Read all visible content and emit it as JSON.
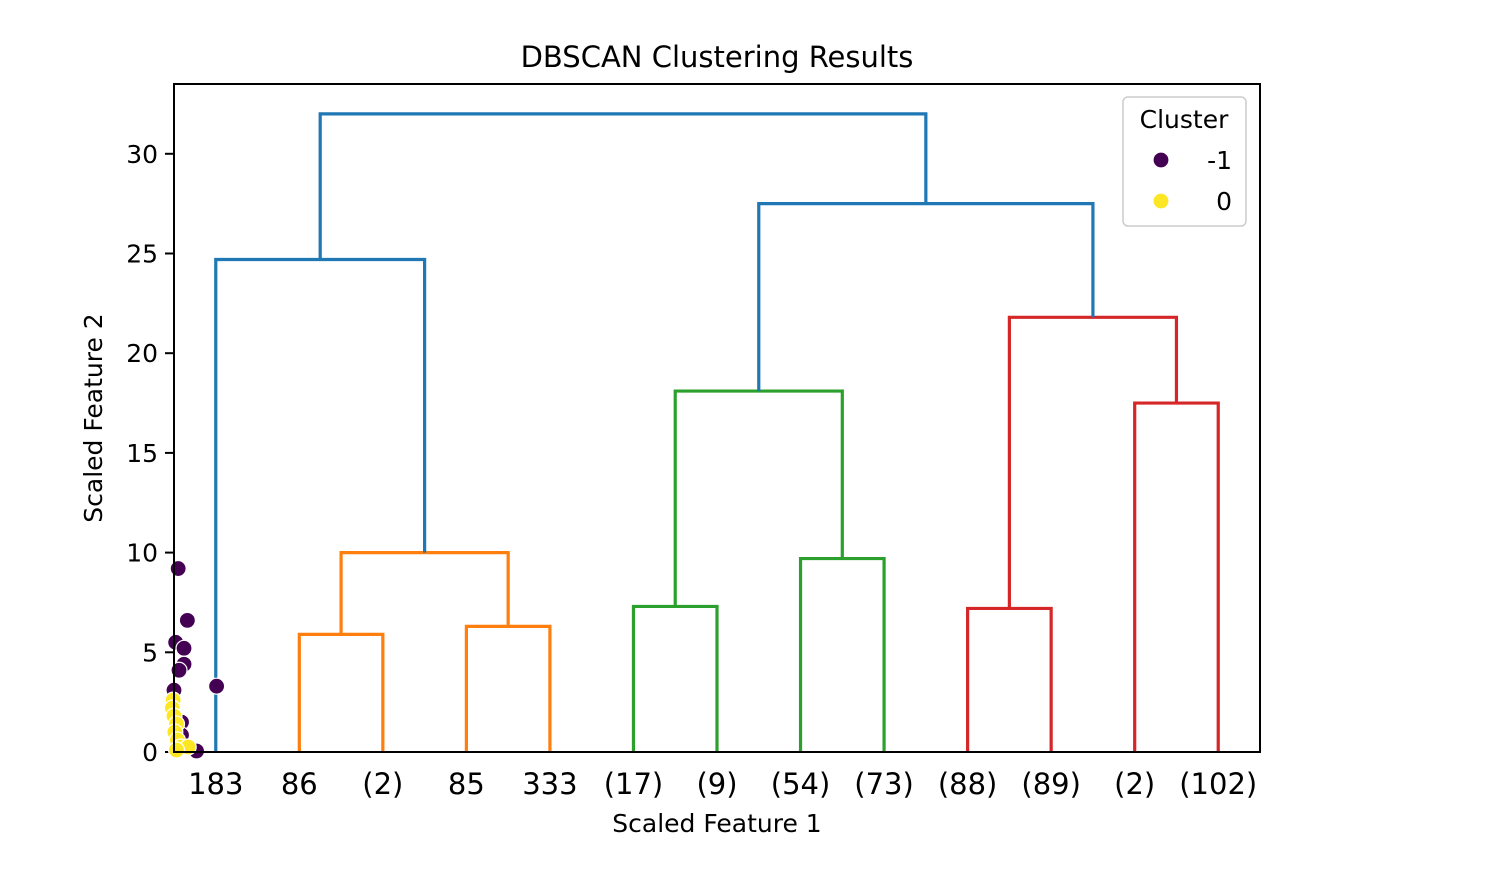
{
  "chart_data": {
    "type": "scatter",
    "title": "DBSCAN Clustering Results",
    "xlabel": "Scaled Feature 1",
    "ylabel": "Scaled Feature 2",
    "ylim": [
      0,
      33.5
    ],
    "yticks": [
      0,
      5,
      10,
      15,
      20,
      25,
      30
    ],
    "leaves": [
      "183",
      "86",
      "(2)",
      "85",
      "333",
      "(17)",
      "(9)",
      "(54)",
      "(73)",
      "(88)",
      "(89)",
      "(2)",
      "(102)"
    ],
    "leaf_positions": [
      5,
      15,
      25,
      35,
      45,
      55,
      65,
      75,
      85,
      95,
      105,
      115,
      125
    ],
    "xlim": [
      0,
      130
    ],
    "legend": {
      "title": "Cluster",
      "placement": "upper right",
      "entries": [
        {
          "label": "-1",
          "color": "#440154"
        },
        {
          "label": "0",
          "color": "#fde725"
        }
      ]
    },
    "dendrogram_links": [
      {
        "x": [
          15,
          15,
          25,
          25
        ],
        "y": [
          0,
          5.9,
          5.9,
          0
        ],
        "color": "#ff7f0e"
      },
      {
        "x": [
          35,
          35,
          45,
          45
        ],
        "y": [
          0,
          6.3,
          6.3,
          0
        ],
        "color": "#ff7f0e"
      },
      {
        "x": [
          20,
          20,
          40,
          40
        ],
        "y": [
          5.9,
          10.0,
          10.0,
          6.3
        ],
        "color": "#ff7f0e"
      },
      {
        "x": [
          5,
          5,
          30,
          30
        ],
        "y": [
          0,
          24.7,
          24.7,
          10.0
        ],
        "color": "#1f77b4"
      },
      {
        "x": [
          55,
          55,
          65,
          65
        ],
        "y": [
          0,
          7.3,
          7.3,
          0
        ],
        "color": "#2ca02c"
      },
      {
        "x": [
          75,
          75,
          85,
          85
        ],
        "y": [
          0,
          9.7,
          9.7,
          0
        ],
        "color": "#2ca02c"
      },
      {
        "x": [
          60,
          60,
          80,
          80
        ],
        "y": [
          7.3,
          18.1,
          18.1,
          9.7
        ],
        "color": "#2ca02c"
      },
      {
        "x": [
          95,
          95,
          105,
          105
        ],
        "y": [
          0,
          7.2,
          7.2,
          0
        ],
        "color": "#d62728"
      },
      {
        "x": [
          115,
          115,
          125,
          125
        ],
        "y": [
          0,
          17.5,
          17.5,
          0
        ],
        "color": "#d62728"
      },
      {
        "x": [
          100,
          100,
          120,
          120
        ],
        "y": [
          7.2,
          21.8,
          21.8,
          17.5
        ],
        "color": "#d62728"
      },
      {
        "x": [
          70,
          70,
          110,
          110
        ],
        "y": [
          18.1,
          27.5,
          27.5,
          21.8
        ],
        "color": "#1f77b4"
      },
      {
        "x": [
          17.5,
          17.5,
          90,
          90
        ],
        "y": [
          24.7,
          32.0,
          32.0,
          27.5
        ],
        "color": "#1f77b4"
      }
    ],
    "scatter_points": [
      {
        "x": 0.5,
        "y": 9.2,
        "cluster": -1
      },
      {
        "x": 1.6,
        "y": 6.6,
        "cluster": -1
      },
      {
        "x": 0.2,
        "y": 5.5,
        "cluster": -1
      },
      {
        "x": 1.2,
        "y": 5.2,
        "cluster": -1
      },
      {
        "x": 1.2,
        "y": 4.4,
        "cluster": -1
      },
      {
        "x": 0.6,
        "y": 4.1,
        "cluster": -1
      },
      {
        "x": 5.1,
        "y": 3.3,
        "cluster": -1
      },
      {
        "x": 0.0,
        "y": 3.1,
        "cluster": -1
      },
      {
        "x": 0.9,
        "y": 1.5,
        "cluster": -1
      },
      {
        "x": 0.9,
        "y": 0.85,
        "cluster": -1
      },
      {
        "x": 2.7,
        "y": 0.05,
        "cluster": -1
      },
      {
        "x": -0.1,
        "y": 2.6,
        "cluster": 0
      },
      {
        "x": -0.2,
        "y": 2.2,
        "cluster": 0
      },
      {
        "x": 0.0,
        "y": 1.8,
        "cluster": 0
      },
      {
        "x": 0.3,
        "y": 1.4,
        "cluster": 0
      },
      {
        "x": 0.1,
        "y": 1.0,
        "cluster": 0
      },
      {
        "x": 0.4,
        "y": 0.6,
        "cluster": 0
      },
      {
        "x": 0.8,
        "y": 0.25,
        "cluster": 0
      },
      {
        "x": 1.7,
        "y": 0.25,
        "cluster": 0
      },
      {
        "x": 0.3,
        "y": 0.1,
        "cluster": 0
      }
    ]
  }
}
